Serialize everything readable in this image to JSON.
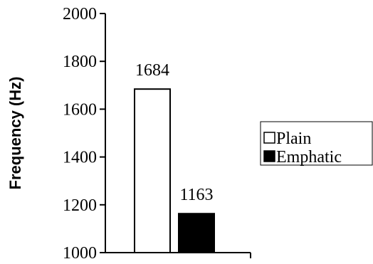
{
  "chart_data": {
    "type": "bar",
    "title": "",
    "xlabel": "",
    "ylabel": "Frequency (Hz)",
    "ylim": [
      1000,
      2000
    ],
    "yticks": [
      1000,
      1200,
      1400,
      1600,
      1800,
      2000
    ],
    "grid": false,
    "legend_position": "right",
    "series": [
      {
        "name": "Plain",
        "value": 1684,
        "label": "1684",
        "color": "#ffffff",
        "stroke": "#000000"
      },
      {
        "name": "Emphatic",
        "value": 1163,
        "label": "1163",
        "color": "#000000",
        "stroke": "#000000"
      }
    ]
  }
}
